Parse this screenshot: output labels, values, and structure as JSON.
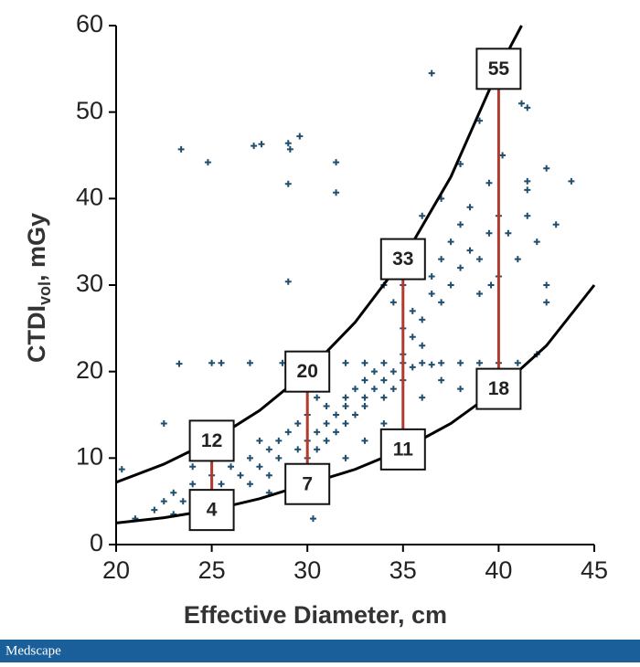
{
  "chart_data": {
    "type": "scatter",
    "x_label": "Effective Diameter, cm",
    "y_label": {
      "main": "CTDI",
      "sub": "vol",
      "rest": ", mGy"
    },
    "footer": "Medscape",
    "xlim": [
      20,
      45
    ],
    "xticks": [
      20,
      25,
      30,
      35,
      40,
      45
    ],
    "ylim": [
      0,
      60
    ],
    "yticks": [
      0,
      10,
      20,
      30,
      40,
      50,
      60
    ],
    "color": "#1f4e6e",
    "x": [
      23.4,
      24.8,
      27.2,
      27.6,
      29,
      29.1,
      29.6,
      29,
      31.5,
      31.5,
      29,
      23.3,
      25,
      25.5,
      27,
      28.7,
      20.3,
      30.3,
      36.5,
      42.5,
      43.8,
      41.5,
      39.5,
      41.2,
      41.5,
      42.5,
      32,
      33,
      34,
      35,
      36,
      37,
      38,
      39,
      40,
      41,
      35.5,
      36.5,
      21,
      22,
      22.5,
      23,
      23.5,
      24,
      24.5,
      25,
      25.5,
      26,
      26,
      26.5,
      27,
      27,
      27.5,
      28,
      28,
      28.5,
      28.5,
      29,
      29,
      29.5,
      29.5,
      30,
      30,
      30,
      30.5,
      30.5,
      31,
      31,
      31,
      31.5,
      31.5,
      32,
      32,
      32,
      32.5,
      32.5,
      33,
      33,
      33,
      33.5,
      33.5,
      34,
      34,
      34.5,
      34.5,
      35,
      35,
      35,
      35.5,
      35.5,
      36,
      36,
      36.5,
      36.5,
      37,
      37,
      37.5,
      37.5,
      38,
      38,
      38.5,
      38.5,
      39,
      39,
      39.5,
      40,
      40,
      40.5,
      41,
      41.5,
      42,
      42.5,
      35,
      34.5,
      36,
      37,
      38,
      39,
      34,
      22.5,
      24,
      26,
      23,
      28,
      29,
      31,
      32,
      33,
      34,
      36,
      37,
      38,
      42,
      43,
      41.5,
      40.2,
      39.6,
      30.5,
      27.5
    ],
    "values": [
      45.7,
      44.2,
      46.1,
      46.3,
      46.4,
      45.7,
      47.2,
      41.7,
      44.2,
      40.7,
      30.4,
      20.9,
      21,
      21,
      21,
      21,
      8.7,
      3,
      54.5,
      43.5,
      42,
      42,
      41.8,
      51,
      50.5,
      28,
      21,
      21,
      21,
      21,
      21,
      21,
      21,
      21,
      21,
      21,
      20.5,
      20.8,
      3,
      4,
      5,
      6,
      5,
      7,
      6,
      8,
      7,
      9,
      6,
      8,
      10,
      7,
      9,
      11,
      8,
      12,
      10,
      9,
      13,
      11,
      14,
      12,
      10,
      15,
      13,
      11,
      14,
      16,
      12,
      15,
      13,
      17,
      14,
      16,
      18,
      15,
      17,
      19,
      16,
      18,
      20,
      19,
      17,
      20,
      18,
      19,
      22,
      25,
      24,
      27,
      26,
      23,
      29,
      31,
      28,
      33,
      30,
      35,
      32,
      37,
      34,
      39,
      33,
      29,
      36,
      38,
      31,
      36,
      33,
      38,
      35,
      30,
      30,
      28,
      38,
      40,
      44,
      49,
      30,
      14,
      9,
      11,
      3.5,
      6,
      5,
      8,
      10,
      12,
      14,
      17,
      19,
      18,
      22,
      37,
      41,
      45,
      30,
      17,
      12
    ],
    "curves": [
      {
        "x": [
          20,
          22.5,
          25,
          27.5,
          30,
          32.5,
          35,
          37.5,
          40,
          41.2
        ],
        "values": [
          7.2,
          9.3,
          12,
          15.5,
          20,
          25.7,
          33,
          42.5,
          55,
          60
        ]
      },
      {
        "x": [
          20,
          22.5,
          25,
          27.5,
          30,
          32.5,
          35,
          37.5,
          40,
          42.5,
          45
        ],
        "values": [
          2.5,
          3.1,
          4,
          5.3,
          7,
          8.7,
          11,
          14,
          18,
          23,
          30
        ]
      }
    ],
    "curve_color": "#000000",
    "range_color": "#b03a2e",
    "annotations": [
      {
        "x": 25,
        "low": 4,
        "high": 12
      },
      {
        "x": 30,
        "low": 7,
        "high": 20
      },
      {
        "x": 35,
        "low": 11,
        "high": 33
      },
      {
        "x": 40,
        "low": 18,
        "high": 55
      }
    ]
  }
}
